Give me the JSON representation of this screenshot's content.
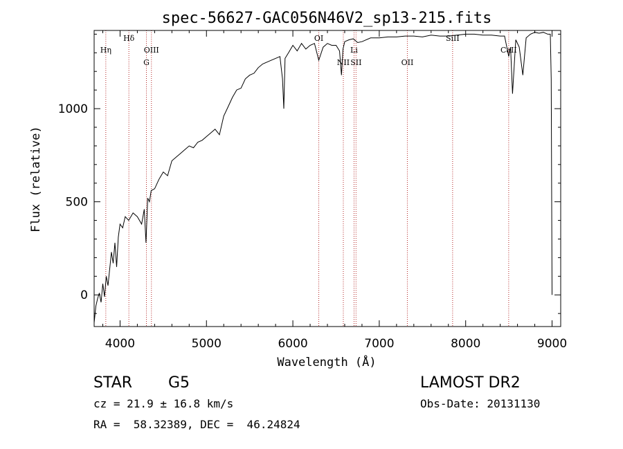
{
  "chart_data": {
    "type": "line",
    "title": "spec-56627-GAC056N46V2_sp13-215.fits",
    "xlabel": "Wavelength (Å)",
    "ylabel": "Flux (relative)",
    "xlim": [
      3700,
      9100
    ],
    "ylim": [
      -170,
      1420
    ],
    "xticks": [
      4000,
      5000,
      6000,
      7000,
      8000,
      9000
    ],
    "yticks": [
      0,
      500,
      1000
    ],
    "line_color": "#000000",
    "marker_color": "#b22222",
    "series": [
      {
        "x": [
          3700,
          3720,
          3740,
          3760,
          3780,
          3800,
          3820,
          3840,
          3860,
          3880,
          3900,
          3920,
          3940,
          3960,
          3980,
          4000,
          4030,
          4060,
          4100,
          4150,
          4200,
          4250,
          4280,
          4300,
          4320,
          4340,
          4360,
          4400,
          4450,
          4500,
          4550,
          4600,
          4650,
          4700,
          4750,
          4800,
          4850,
          4900,
          4950,
          5000,
          5050,
          5100,
          5150,
          5200,
          5250,
          5300,
          5350,
          5400,
          5450,
          5500,
          5550,
          5600,
          5650,
          5700,
          5750,
          5800,
          5850,
          5880,
          5895,
          5910,
          5950,
          6000,
          6050,
          6100,
          6150,
          6200,
          6250,
          6300,
          6350,
          6400,
          6450,
          6500,
          6540,
          6563,
          6580,
          6600,
          6650,
          6700,
          6750,
          6800,
          6900,
          7000,
          7100,
          7200,
          7300,
          7400,
          7500,
          7600,
          7700,
          7800,
          7900,
          8000,
          8100,
          8200,
          8300,
          8400,
          8450,
          8498,
          8520,
          8542,
          8580,
          8620,
          8662,
          8700,
          8750,
          8800,
          8850,
          8900,
          8950,
          8980,
          8990,
          9000
        ],
        "y": [
          -150,
          -60,
          -20,
          10,
          -40,
          60,
          -10,
          100,
          50,
          140,
          230,
          170,
          280,
          150,
          310,
          380,
          360,
          420,
          400,
          440,
          420,
          380,
          460,
          280,
          520,
          500,
          560,
          570,
          620,
          660,
          640,
          720,
          740,
          760,
          780,
          800,
          790,
          820,
          830,
          850,
          870,
          890,
          860,
          960,
          1010,
          1060,
          1100,
          1110,
          1160,
          1180,
          1190,
          1220,
          1240,
          1250,
          1260,
          1270,
          1280,
          1160,
          1000,
          1270,
          1300,
          1340,
          1310,
          1350,
          1320,
          1340,
          1350,
          1260,
          1330,
          1350,
          1340,
          1340,
          1310,
          1180,
          1320,
          1360,
          1370,
          1375,
          1355,
          1360,
          1380,
          1380,
          1385,
          1385,
          1390,
          1390,
          1385,
          1395,
          1390,
          1390,
          1395,
          1400,
          1400,
          1395,
          1395,
          1390,
          1390,
          1280,
          1330,
          1080,
          1370,
          1330,
          1180,
          1380,
          1400,
          1410,
          1405,
          1410,
          1400,
          1400,
          1160,
          0
        ]
      }
    ],
    "lines": [
      {
        "label": "Hη",
        "x": 3835,
        "row": 1
      },
      {
        "label": "Hδ",
        "x": 4102,
        "row": 0
      },
      {
        "label": "G",
        "x": 4305,
        "row": 2
      },
      {
        "label": "OIII",
        "x": 4363,
        "row": 1
      },
      {
        "label": "OI",
        "x": 6300,
        "row": 0
      },
      {
        "label": "NII",
        "x": 6584,
        "row": 2
      },
      {
        "label": "Li",
        "x": 6708,
        "row": 1
      },
      {
        "label": "SII",
        "x": 6731,
        "row": 2
      },
      {
        "label": "OII",
        "x": 7325,
        "row": 2
      },
      {
        "label": "SiII",
        "x": 7849,
        "row": 0
      },
      {
        "label": "CaII",
        "x": 8498,
        "row": 1
      }
    ]
  },
  "info": {
    "object_class": "STAR",
    "subclass": "G5",
    "survey": "LAMOST DR2",
    "redshift": "cz = 21.9 ± 16.8 km/s",
    "obs_date": "Obs-Date: 20131130",
    "coords": "RA =  58.32389, DEC =  46.24824"
  }
}
